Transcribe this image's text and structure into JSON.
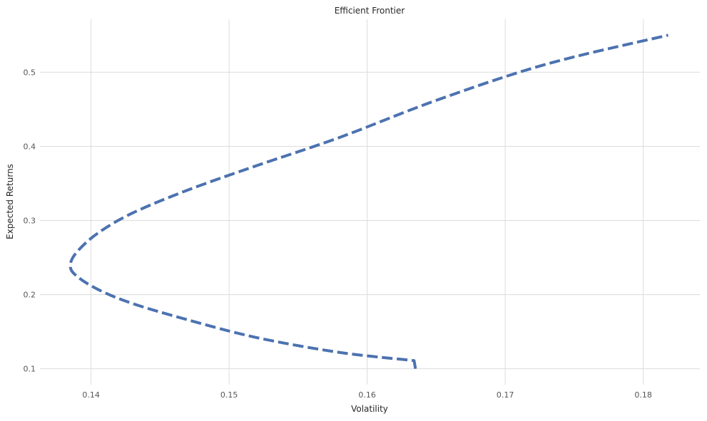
{
  "chart_data": {
    "type": "line",
    "title": "Efficient Frontier",
    "xlabel": "Volatility",
    "ylabel": "Expected Returns",
    "xlim": [
      0.1363,
      0.1841
    ],
    "ylim": [
      0.0785,
      0.5715
    ],
    "xticks": [
      {
        "value": 0.14,
        "label": "0.14"
      },
      {
        "value": 0.15,
        "label": "0.15"
      },
      {
        "value": 0.16,
        "label": "0.16"
      },
      {
        "value": 0.17,
        "label": "0.17"
      },
      {
        "value": 0.18,
        "label": "0.18"
      }
    ],
    "yticks": [
      {
        "value": 0.1,
        "label": "0.1"
      },
      {
        "value": 0.2,
        "label": "0.2"
      },
      {
        "value": 0.3,
        "label": "0.3"
      },
      {
        "value": 0.4,
        "label": "0.4"
      },
      {
        "value": 0.5,
        "label": "0.5"
      }
    ],
    "grid": true,
    "legend": false,
    "series": [
      {
        "color": "#4c72b0",
        "line_style": "dashed",
        "points": [
          {
            "x": 0.1635,
            "y": 0.1
          },
          {
            "x": 0.1634,
            "y": 0.111
          },
          {
            "x": 0.158,
            "y": 0.122
          },
          {
            "x": 0.152,
            "y": 0.142
          },
          {
            "x": 0.147,
            "y": 0.166
          },
          {
            "x": 0.143,
            "y": 0.188
          },
          {
            "x": 0.1405,
            "y": 0.207
          },
          {
            "x": 0.1389,
            "y": 0.226
          },
          {
            "x": 0.1385,
            "y": 0.24
          },
          {
            "x": 0.139,
            "y": 0.258
          },
          {
            "x": 0.1405,
            "y": 0.283
          },
          {
            "x": 0.143,
            "y": 0.31
          },
          {
            "x": 0.147,
            "y": 0.341
          },
          {
            "x": 0.152,
            "y": 0.374
          },
          {
            "x": 0.158,
            "y": 0.412
          },
          {
            "x": 0.165,
            "y": 0.462
          },
          {
            "x": 0.173,
            "y": 0.511
          },
          {
            "x": 0.1818,
            "y": 0.55
          }
        ]
      }
    ]
  }
}
